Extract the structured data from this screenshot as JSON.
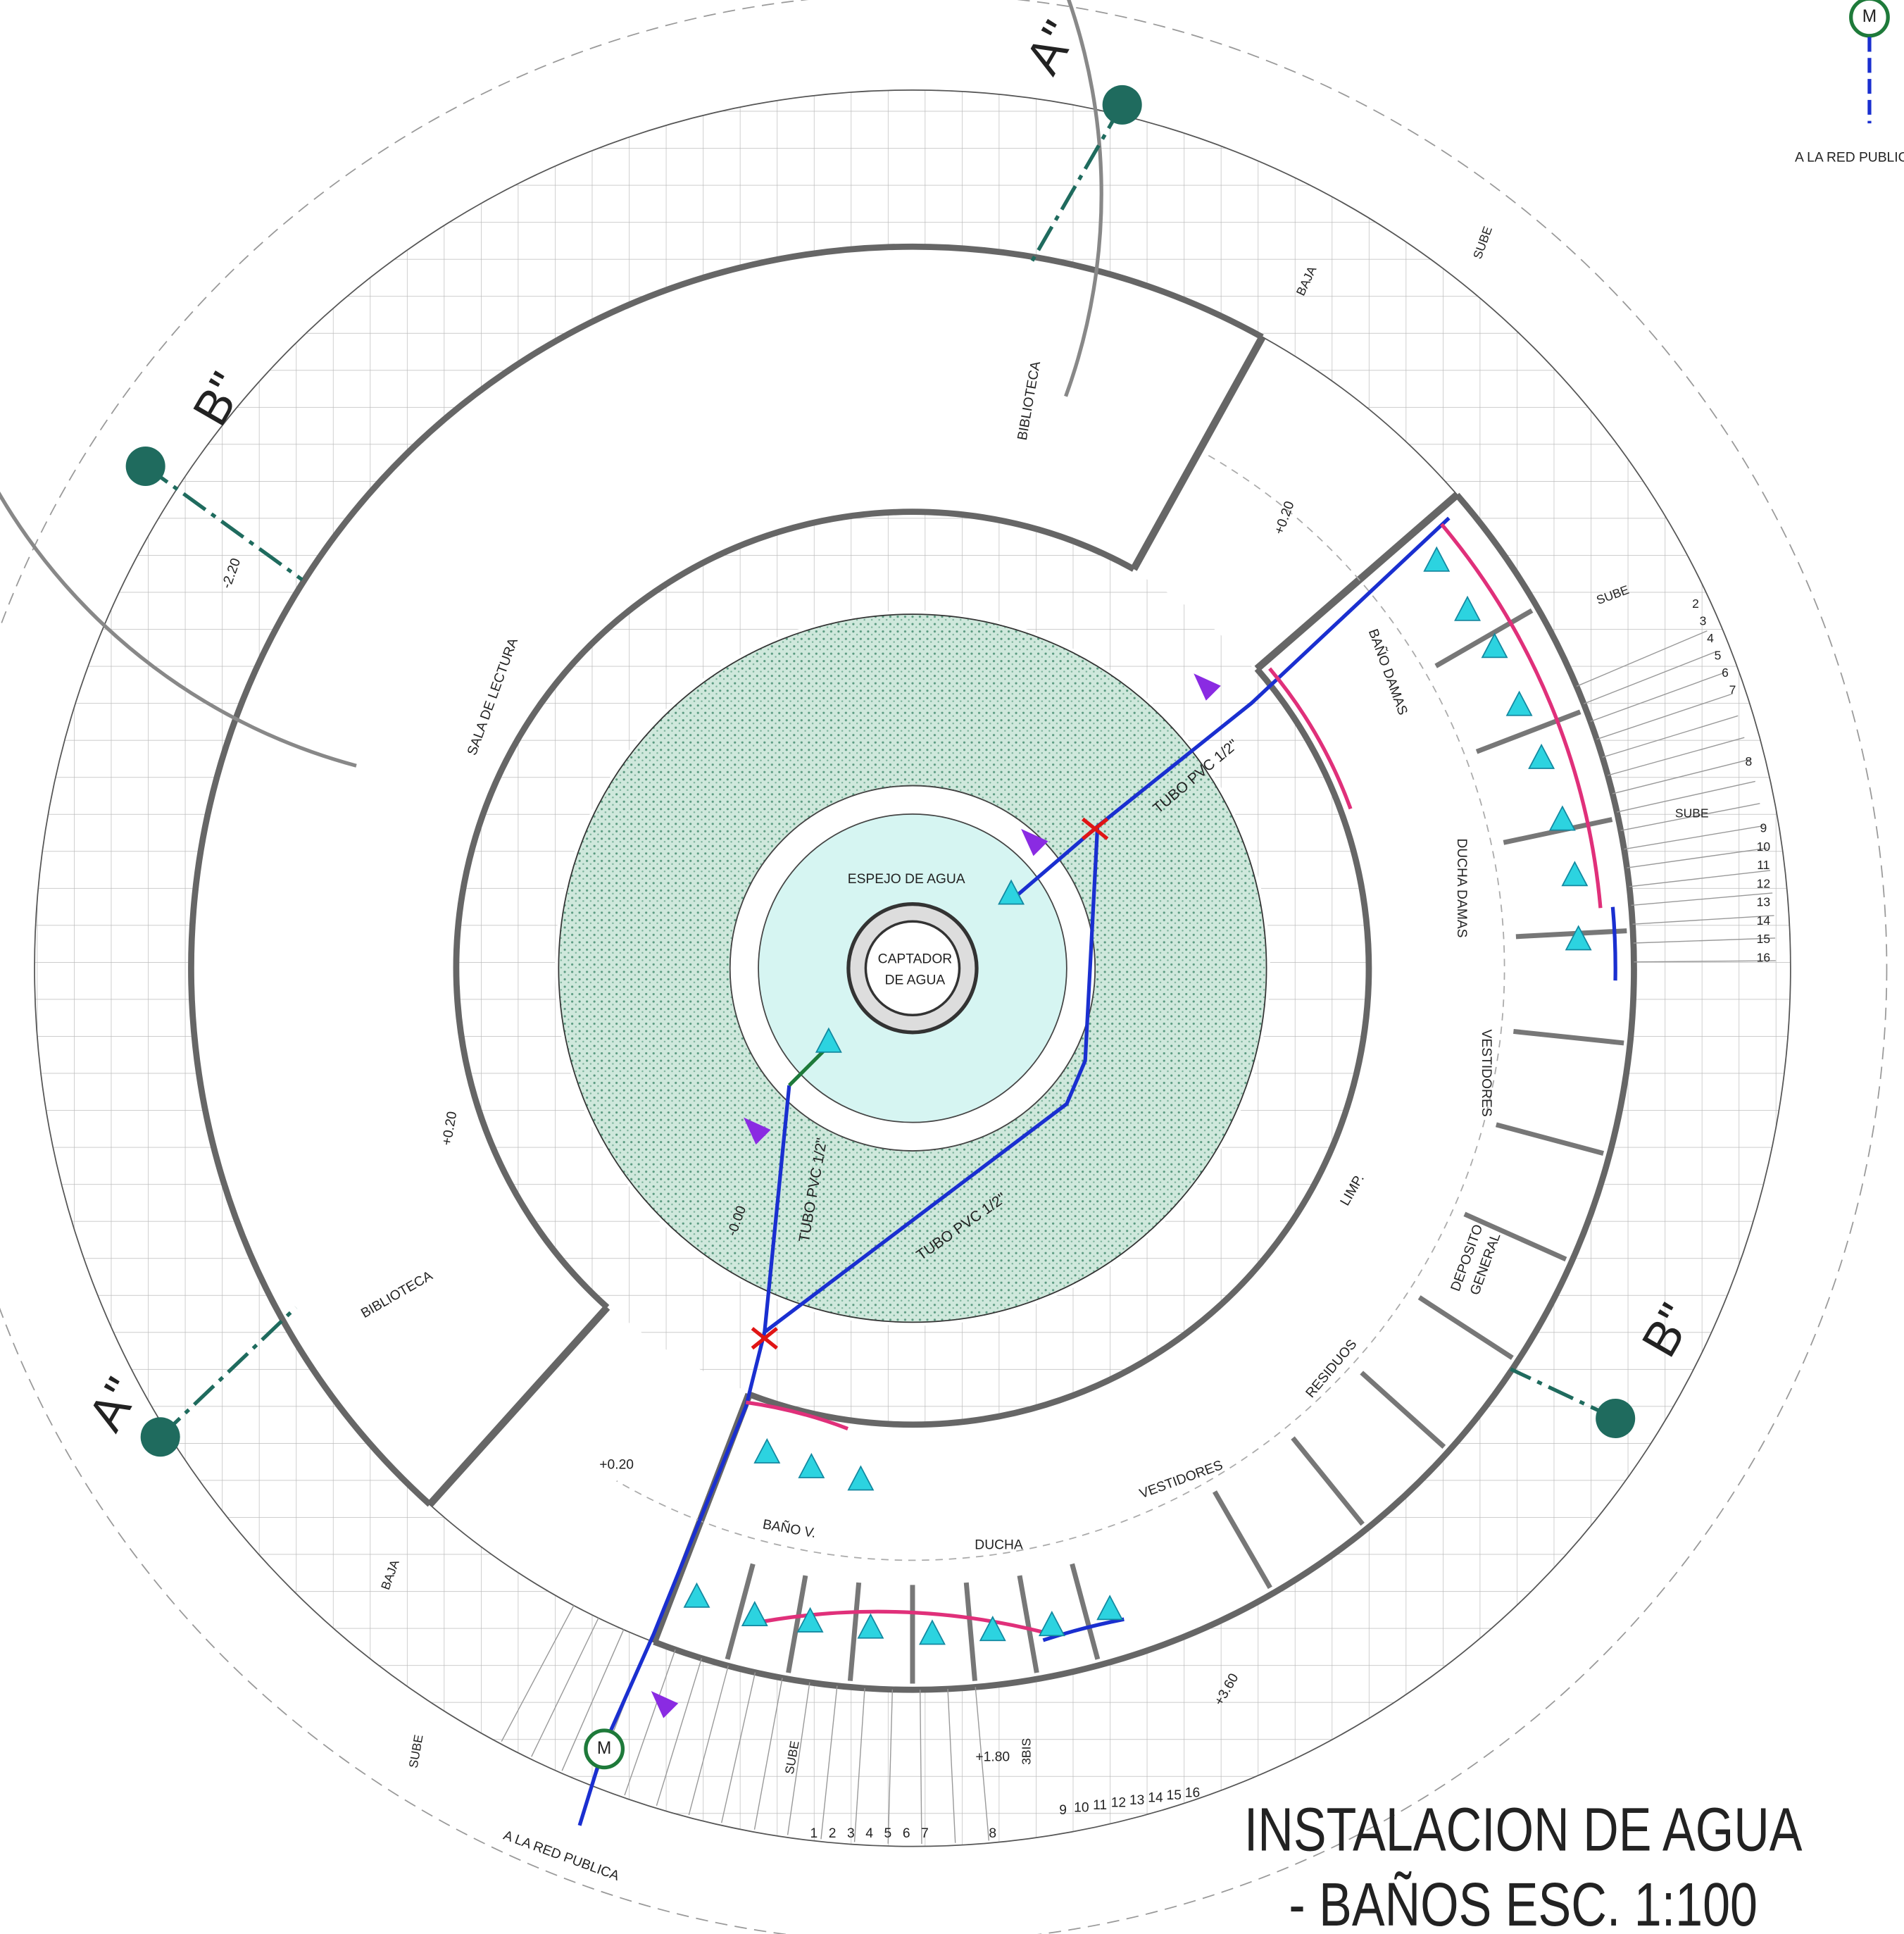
{
  "sections": [
    "A\"",
    "A\"",
    "B\"",
    "B\""
  ],
  "rooms": [
    "BIBLIOTECA",
    "SALA DE LECTURA",
    "BIBLIOTECA",
    "ESPEJO DE AGUA",
    "CAPTADOR",
    "DE AGUA",
    "BAÑO DAMAS",
    "DUCHA DAMAS",
    "VESTIDORES",
    "LIMP.",
    "DEPOSITO",
    "GENERAL",
    "RESIDUOS",
    "VESTIDORES",
    "DUCHA",
    "BAÑO V."
  ],
  "pipes": [
    "TUBO PVC 1/2\"",
    "TUBO PVC 1/2\"",
    "TUBO PVC 1/2\""
  ],
  "levels": [
    "-2.20",
    "+0.20",
    "+0.20",
    "-0.00",
    "+0.20",
    "+1.80",
    "+3.60"
  ],
  "stairs": [
    "SUBE",
    "SUBE",
    "SUBE",
    "SUBE",
    "SUBE",
    "BAJA",
    "BAJA",
    "3BIS"
  ],
  "steps_right": [
    2,
    3,
    4,
    5,
    6,
    7,
    8,
    9,
    10,
    11,
    12,
    13,
    14,
    15,
    16
  ],
  "steps_bottom": [
    1,
    2,
    3,
    4,
    5,
    6,
    7,
    8,
    9,
    10,
    11,
    12,
    13,
    14,
    15,
    16
  ],
  "meters": [
    {
      "label": "M",
      "outlet": "A LA RED PUBLICA"
    },
    {
      "label": "M",
      "outlet": "A LA RED PUBLICA"
    }
  ],
  "title": [
    "INSTALACION DE AGUA",
    "- BAÑOS ESC. 1:100"
  ]
}
